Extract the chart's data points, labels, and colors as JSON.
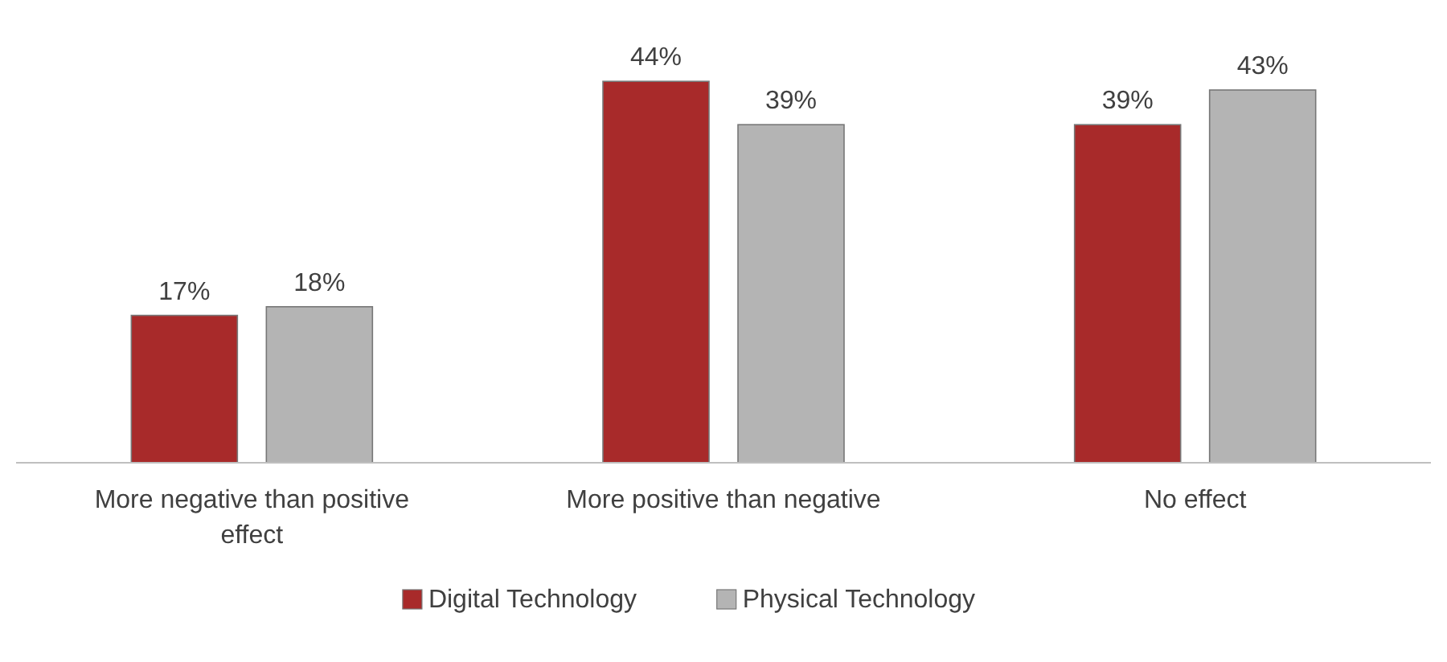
{
  "chart_data": {
    "type": "bar",
    "categories": [
      "More negative than positive effect",
      "More positive than negative",
      "No effect"
    ],
    "series": [
      {
        "name": "Digital Technology",
        "color": "#a82a2a",
        "values": [
          17,
          44,
          39
        ],
        "value_labels": [
          "17%",
          "44%",
          "39%"
        ]
      },
      {
        "name": "Physical Technology",
        "color": "#b4b4b4",
        "values": [
          18,
          39,
          43
        ],
        "value_labels": [
          "18%",
          "39%",
          "43%"
        ]
      }
    ],
    "legend": "bottom"
  }
}
